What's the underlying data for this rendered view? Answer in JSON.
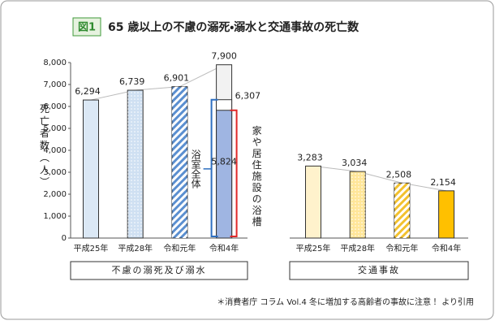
{
  "header": {
    "badge": "図1",
    "title": "65 歳以上の不慮の溺死・溺水と交通事故の死亡数"
  },
  "chart_data": {
    "type": "bar",
    "ylabel": "死亡者数（人）",
    "ylim": [
      0,
      8000
    ],
    "yticks": [
      0,
      {
        "value": 1000,
        "label": "1,000"
      },
      {
        "value": 2000,
        "label": "2,000"
      },
      {
        "value": 3000,
        "label": "3,000"
      },
      {
        "value": 4000,
        "label": "4,000"
      },
      {
        "value": 5000,
        "label": "5,000"
      },
      {
        "value": 6000,
        "label": "6,000"
      },
      {
        "value": 7000,
        "label": "7,000"
      },
      {
        "value": 8000,
        "label": "8,000"
      }
    ],
    "groups": [
      {
        "label": "不慮の溺死及び溺水",
        "categories": [
          "平成25年",
          "平成28年",
          "令和元年",
          "令和4年"
        ],
        "values": [
          6294,
          6739,
          6901,
          7900
        ],
        "value_labels": [
          "6,294",
          "6,739",
          "6,901",
          "7,900"
        ],
        "colors": [
          "#dbe8f5",
          "#cfe0f2",
          "#5b8fd0",
          "#f2f2f2"
        ],
        "patterns": [
          "solid",
          "dots",
          "stripes",
          "solid"
        ],
        "details": [
          {
            "label": "浴室全体",
            "value": 6307,
            "value_label": "6,307",
            "color": "#2e6fc0",
            "fill": "#ffffff"
          },
          {
            "label": "家や居住施設の浴槽",
            "value": 5824,
            "value_label": "5,824",
            "color": "#e02828",
            "fill": "#9fb5e2"
          }
        ]
      },
      {
        "label": "交通事故",
        "categories": [
          "平成25年",
          "平成28年",
          "令和元年",
          "令和4年"
        ],
        "values": [
          3283,
          3034,
          2508,
          2154
        ],
        "value_labels": [
          "3,283",
          "3,034",
          "2,508",
          "2,154"
        ],
        "colors": [
          "#fff2cc",
          "#ffe699",
          "#f2c12e",
          "#ffc000"
        ],
        "patterns": [
          "solid",
          "dots",
          "stripes",
          "solid"
        ]
      }
    ]
  },
  "footnote": "＊消費者庁 コラム Vol.4 冬に増加する高齢者の事故に注意！ より引用"
}
